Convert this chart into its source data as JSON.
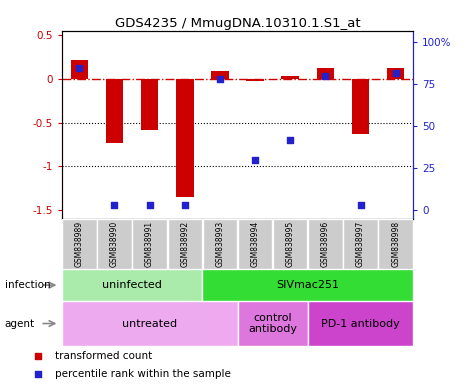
{
  "title": "GDS4235 / MmugDNA.10310.1.S1_at",
  "samples": [
    "GSM838989",
    "GSM838990",
    "GSM838991",
    "GSM838992",
    "GSM838993",
    "GSM838994",
    "GSM838995",
    "GSM838996",
    "GSM838997",
    "GSM838998"
  ],
  "bar_values": [
    0.22,
    -0.73,
    -0.58,
    -1.35,
    0.09,
    -0.02,
    0.03,
    0.12,
    -0.63,
    0.12
  ],
  "blue_values": [
    85,
    3,
    3,
    3,
    78,
    30,
    42,
    80,
    3,
    82
  ],
  "ylim_left": [
    -1.6,
    0.55
  ],
  "ylim_right": [
    -5.35,
    107
  ],
  "bar_color": "#cc0000",
  "blue_color": "#2222cc",
  "sample_box_color": "#cccccc",
  "infection_groups": [
    {
      "label": "uninfected",
      "start": 0,
      "end": 4,
      "color": "#aaeaaa"
    },
    {
      "label": "SIVmac251",
      "start": 4,
      "end": 10,
      "color": "#33dd33"
    }
  ],
  "agent_groups": [
    {
      "label": "untreated",
      "start": 0,
      "end": 5,
      "color": "#eeaaee"
    },
    {
      "label": "control\nantibody",
      "start": 5,
      "end": 7,
      "color": "#dd77dd"
    },
    {
      "label": "PD-1 antibody",
      "start": 7,
      "end": 10,
      "color": "#cc44cc"
    }
  ],
  "legend_items": [
    {
      "label": "transformed count",
      "color": "#cc0000"
    },
    {
      "label": "percentile rank within the sample",
      "color": "#2222cc"
    }
  ],
  "right_yticks": [
    0,
    25,
    50,
    75,
    100
  ],
  "right_yticklabels": [
    "0",
    "25",
    "50",
    "75",
    "100%"
  ]
}
